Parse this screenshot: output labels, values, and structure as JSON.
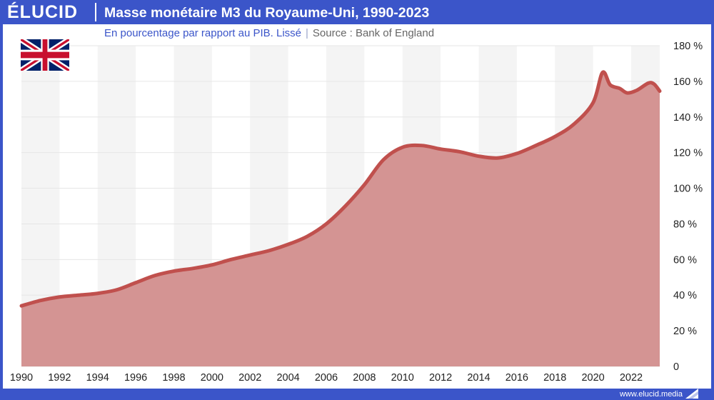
{
  "brand": {
    "logo": "ÉLUCID",
    "url": "www.elucid.media"
  },
  "header": {
    "title": "Masse monétaire M3 du Royaume-Uni, 1990-2023"
  },
  "subtitle": {
    "text": "En pourcentage par rapport au PIB. Lissé",
    "separator": "|",
    "source": "Source : Bank of England"
  },
  "flag": {
    "icon": "uk-flag-icon"
  },
  "colors": {
    "brand_blue": "#3b55c9",
    "line": "#c0504d",
    "area": "#d49493",
    "band": "#f4f4f4",
    "grid": "#e6e6e6"
  },
  "chart_data": {
    "type": "area",
    "title": "Masse monétaire M3 du Royaume-Uni, 1990-2023",
    "xlabel": "",
    "ylabel": "",
    "xlim": [
      1990,
      2023.5
    ],
    "ylim": [
      0,
      180
    ],
    "x_ticks": [
      1990,
      1992,
      1994,
      1996,
      1998,
      2000,
      2002,
      2004,
      2006,
      2008,
      2010,
      2012,
      2014,
      2016,
      2018,
      2020,
      2022
    ],
    "y_ticks": [
      0,
      20,
      40,
      60,
      80,
      100,
      120,
      140,
      160,
      180
    ],
    "y_tick_labels": [
      "0",
      "20 %",
      "40 %",
      "60 %",
      "80 %",
      "100 %",
      "120 %",
      "140 %",
      "160 %",
      "180 %"
    ],
    "grid": true,
    "legend": "none",
    "series": [
      {
        "values": [
          [
            1990,
            34
          ],
          [
            1991,
            37
          ],
          [
            1992,
            39
          ],
          [
            1993,
            40
          ],
          [
            1994,
            41
          ],
          [
            1995,
            43
          ],
          [
            1996,
            47
          ],
          [
            1997,
            51
          ],
          [
            1998,
            53.5
          ],
          [
            1999,
            55
          ],
          [
            2000,
            57
          ],
          [
            2001,
            60
          ],
          [
            2002,
            62.5
          ],
          [
            2003,
            65
          ],
          [
            2004,
            68.5
          ],
          [
            2005,
            73
          ],
          [
            2006,
            80
          ],
          [
            2007,
            90
          ],
          [
            2008,
            102
          ],
          [
            2009,
            116
          ],
          [
            2010,
            123
          ],
          [
            2011,
            124
          ],
          [
            2012,
            122
          ],
          [
            2013,
            120.5
          ],
          [
            2014,
            118
          ],
          [
            2015,
            117
          ],
          [
            2016,
            119.5
          ],
          [
            2017,
            124
          ],
          [
            2018,
            129
          ],
          [
            2019,
            136
          ],
          [
            2020,
            148
          ],
          [
            2020.5,
            165
          ],
          [
            2020.9,
            158
          ],
          [
            2021.4,
            156
          ],
          [
            2021.8,
            153.5
          ],
          [
            2022.3,
            155
          ],
          [
            2022.9,
            159
          ],
          [
            2023.2,
            158.5
          ],
          [
            2023.5,
            154.5
          ]
        ]
      }
    ]
  }
}
